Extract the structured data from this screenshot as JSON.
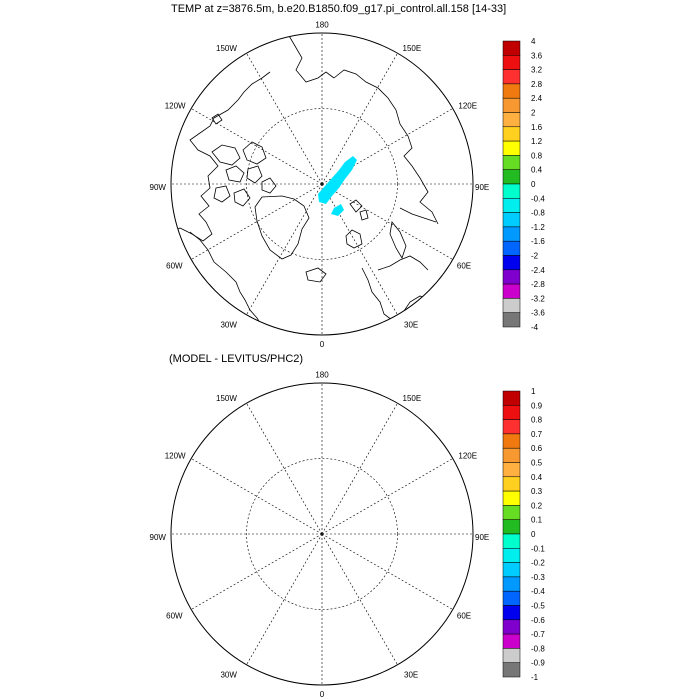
{
  "panels": [
    {
      "title": "TEMP at z=3876.5m, b.e20.B1850.f09_g17.pi_control.all.158 [14-33]",
      "lon_labels": [
        "180",
        "150E",
        "120E",
        "90E",
        "60E",
        "30E",
        "0",
        "30W",
        "60W",
        "90W",
        "120W",
        "150W"
      ],
      "colorbar": {
        "labels": [
          "4",
          "3.6",
          "3.2",
          "2.8",
          "2.4",
          "2",
          "1.6",
          "1.2",
          "0.8",
          "0.4",
          "0",
          "-0.4",
          "-0.8",
          "-1.2",
          "-1.6",
          "-2",
          "-2.4",
          "-2.8",
          "-3.2",
          "-3.6",
          "-4"
        ]
      }
    },
    {
      "title": "(MODEL - LEVITUS/PHC2)",
      "lon_labels": [
        "180",
        "150E",
        "120E",
        "90E",
        "60E",
        "30E",
        "0",
        "30W",
        "60W",
        "90W",
        "120W",
        "150W"
      ],
      "colorbar": {
        "labels": [
          "1",
          "0.9",
          "0.8",
          "0.7",
          "0.6",
          "0.5",
          "0.4",
          "0.3",
          "0.2",
          "0.1",
          "0",
          "-0.1",
          "-0.2",
          "-0.3",
          "-0.4",
          "-0.5",
          "-0.6",
          "-0.7",
          "-0.8",
          "-0.9",
          "-1"
        ]
      }
    }
  ],
  "colorbar_colors": [
    "#c00000",
    "#ee1010",
    "#ff3030",
    "#f07a10",
    "#f89830",
    "#ffb040",
    "#ffd020",
    "#ffff00",
    "#66dd22",
    "#22bb22",
    "#00ffcc",
    "#00eeee",
    "#00ccff",
    "#0099ff",
    "#0066ff",
    "#0000ee",
    "#7f00cc",
    "#cc00cc",
    "#cccccc",
    "#777777"
  ],
  "anomaly_fill_color": "#00e5ff"
}
